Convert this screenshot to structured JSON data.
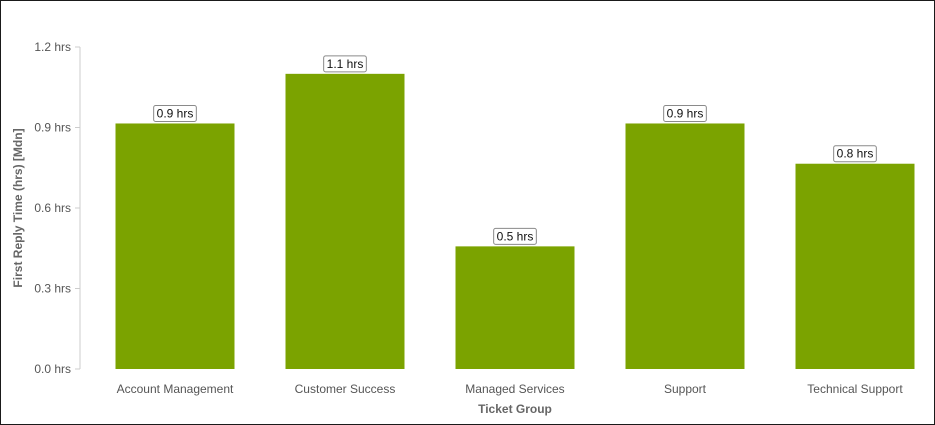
{
  "chart_data": {
    "type": "bar",
    "categories": [
      "Account Management",
      "Customer Success",
      "Managed Services",
      "Support",
      "Technical Support"
    ],
    "values": [
      0.915,
      1.1,
      0.457,
      0.915,
      0.765
    ],
    "data_labels": [
      "0.9 hrs",
      "1.1 hrs",
      "0.5 hrs",
      "0.9 hrs",
      "0.8 hrs"
    ],
    "yticks": [
      0,
      0.3,
      0.6,
      0.9,
      1.2
    ],
    "ytick_labels": [
      "0.0 hrs",
      "0.3 hrs",
      "0.6 hrs",
      "0.9 hrs",
      "1.2 hrs"
    ],
    "ylim": [
      0,
      1.2
    ],
    "xlabel": "Ticket Group",
    "ylabel": "First Reply Time (hrs) [Mdn]",
    "bar_color": "#7ba300",
    "grid": false,
    "legend": "none"
  }
}
